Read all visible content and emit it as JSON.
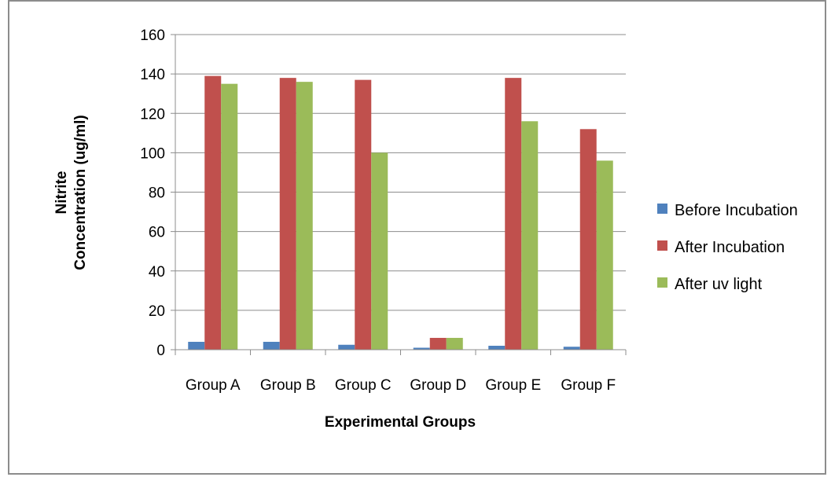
{
  "chart_data": {
    "type": "bar",
    "title": "",
    "xlabel": "Experimental Groups",
    "ylabel_lines": [
      "Nitrite",
      "Concentration (ug/ml)"
    ],
    "categories": [
      "Group A",
      "Group B",
      "Group C",
      "Group D",
      "Group E",
      "Group F"
    ],
    "series": [
      {
        "name": "Before Incubation",
        "color": "#4F81BD",
        "values": [
          4,
          4,
          2.5,
          1,
          2,
          1.5
        ]
      },
      {
        "name": "After Incubation",
        "color": "#C0504D",
        "values": [
          139,
          138,
          137,
          6,
          138,
          112
        ]
      },
      {
        "name": "After uv light",
        "color": "#9BBB59",
        "values": [
          135,
          136,
          100,
          6,
          116,
          96
        ]
      }
    ],
    "ylim": [
      0,
      160
    ],
    "yticks": [
      0,
      20,
      40,
      60,
      80,
      100,
      120,
      140,
      160
    ],
    "grid": true,
    "legend_position": "right"
  }
}
